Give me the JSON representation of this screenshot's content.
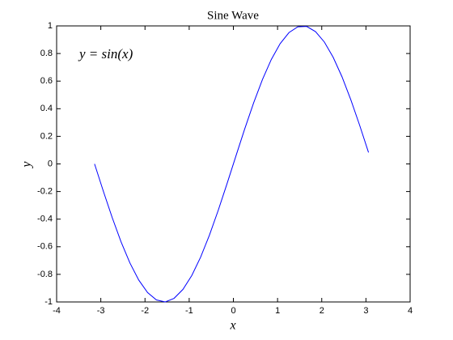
{
  "chart_data": {
    "type": "line",
    "title": "Sine Wave",
    "xlabel": "x",
    "ylabel": "y",
    "annotation": "y = sin(x)",
    "x": [
      -3.1416,
      -2.9416,
      -2.7416,
      -2.5416,
      -2.3416,
      -2.1416,
      -1.9416,
      -1.7416,
      -1.5416,
      -1.3416,
      -1.1416,
      -0.9416,
      -0.7416,
      -0.5416,
      -0.3416,
      -0.1416,
      0.0584,
      0.2584,
      0.4584,
      0.6584,
      0.8584,
      1.0584,
      1.2584,
      1.4584,
      1.6584,
      1.8584,
      2.0584,
      2.2584,
      2.4584,
      2.6584,
      2.8584,
      3.0584
    ],
    "series": [
      {
        "color": "#0000ff",
        "values": [
          0,
          -0.1987,
          -0.3894,
          -0.5646,
          -0.7174,
          -0.8415,
          -0.932,
          -0.9854,
          -0.9996,
          -0.9738,
          -0.9093,
          -0.8085,
          -0.6755,
          -0.5155,
          -0.335,
          -0.1411,
          0.0584,
          0.2555,
          0.4425,
          0.6119,
          0.7568,
          0.8716,
          0.9516,
          0.9937,
          0.9962,
          0.9589,
          0.8835,
          0.7728,
          0.6313,
          0.4646,
          0.2794,
          0.0831
        ]
      }
    ],
    "xlim": [
      -4,
      4
    ],
    "ylim": [
      -1,
      1
    ],
    "xticks": [
      -4,
      -3,
      -2,
      -1,
      0,
      1,
      2,
      3,
      4
    ],
    "yticks": [
      -1,
      -0.8,
      -0.6,
      -0.4,
      -0.2,
      0,
      0.2,
      0.4,
      0.6,
      0.8,
      1
    ],
    "grid": false
  }
}
